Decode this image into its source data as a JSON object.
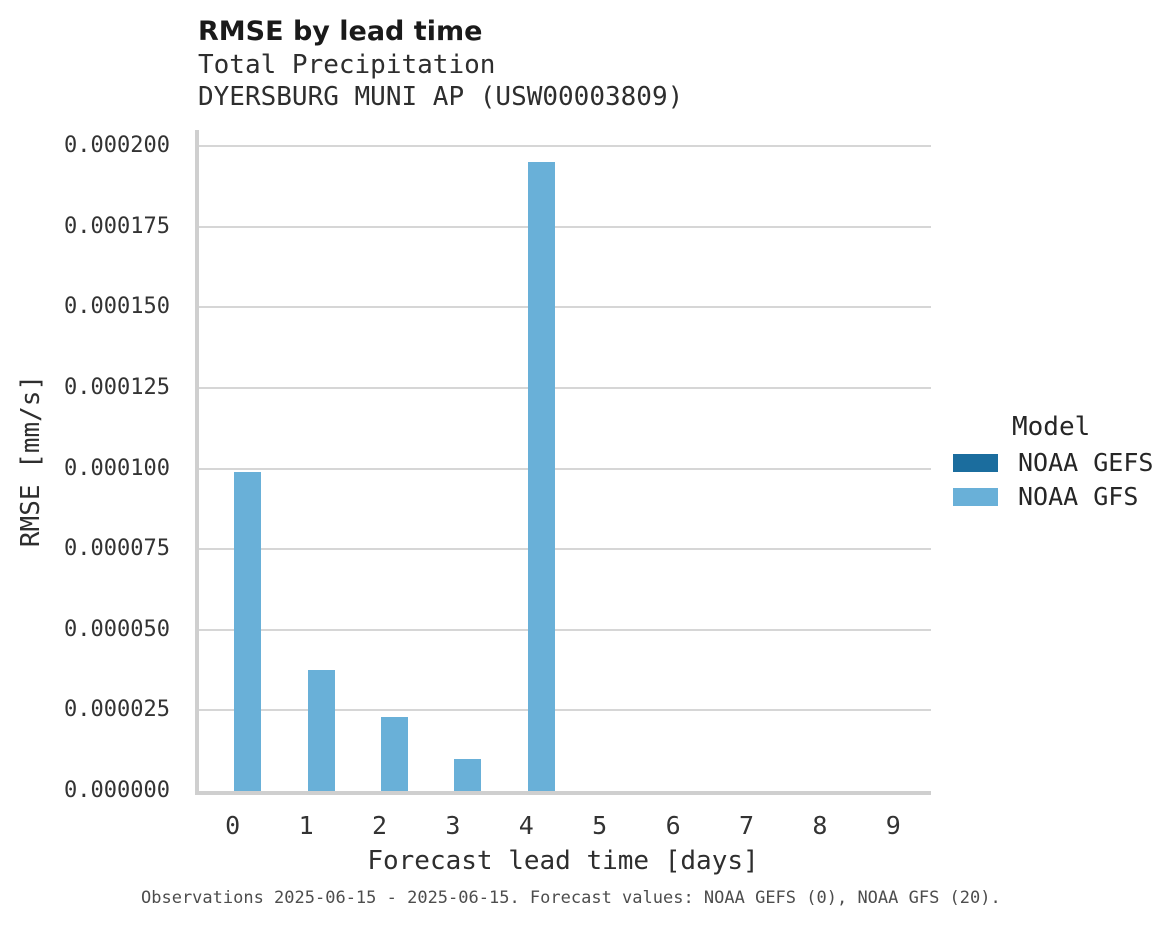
{
  "header": {
    "title": "RMSE by lead time",
    "subtitle_line1": "Total Precipitation",
    "subtitle_line2": "DYERSBURG MUNI AP (USW00003809)"
  },
  "chart_data": {
    "type": "bar",
    "title": "RMSE by lead time",
    "subtitle": [
      "Total Precipitation",
      "DYERSBURG MUNI AP (USW00003809)"
    ],
    "xlabel": "Forecast lead time [days]",
    "ylabel": "RMSE [mm/s]",
    "x": [
      0,
      1,
      2,
      3,
      4,
      5,
      6,
      7,
      8,
      9
    ],
    "x_tick_labels": [
      "0",
      "1",
      "2",
      "3",
      "4",
      "5",
      "6",
      "7",
      "8",
      "9"
    ],
    "xlim": [
      -0.5,
      9.5
    ],
    "ylim": [
      0,
      0.0002
    ],
    "y_ticks": [
      {
        "value": 0,
        "label": "0.000000"
      },
      {
        "value": 2.5e-05,
        "label": "0.000025"
      },
      {
        "value": 5e-05,
        "label": "0.000050"
      },
      {
        "value": 7.5e-05,
        "label": "0.000075"
      },
      {
        "value": 0.0001,
        "label": "0.000100"
      },
      {
        "value": 0.000125,
        "label": "0.000125"
      },
      {
        "value": 0.00015,
        "label": "0.000150"
      },
      {
        "value": 0.000175,
        "label": "0.000175"
      },
      {
        "value": 0.0002,
        "label": "0.000200"
      }
    ],
    "series": [
      {
        "name": "NOAA GEFS",
        "color": "#1b6d9e",
        "values": [
          null,
          null,
          null,
          null,
          null,
          null,
          null,
          null,
          null,
          null
        ]
      },
      {
        "name": "NOAA GFS",
        "color": "#69b0d8",
        "values": [
          9.9e-05,
          3.75e-05,
          2.3e-05,
          1e-05,
          0.000195,
          null,
          null,
          null,
          null,
          null
        ]
      }
    ],
    "grid": "horizontal",
    "legend_position": "right"
  },
  "legend": {
    "title": "Model",
    "items": [
      {
        "label": "NOAA GEFS",
        "color": "#1b6d9e"
      },
      {
        "label": "NOAA GFS",
        "color": "#69b0d8"
      }
    ]
  },
  "footer": {
    "text": "Observations 2025-06-15 - 2025-06-15. Forecast values: NOAA GEFS (0), NOAA GFS (20)."
  },
  "colors": {
    "gridline": "#d6d6d6",
    "axis_spine": "#cfcfcf",
    "title_text": "#1a1a1a",
    "tick_text": "#333333",
    "caption_text": "#4d4d4d"
  }
}
